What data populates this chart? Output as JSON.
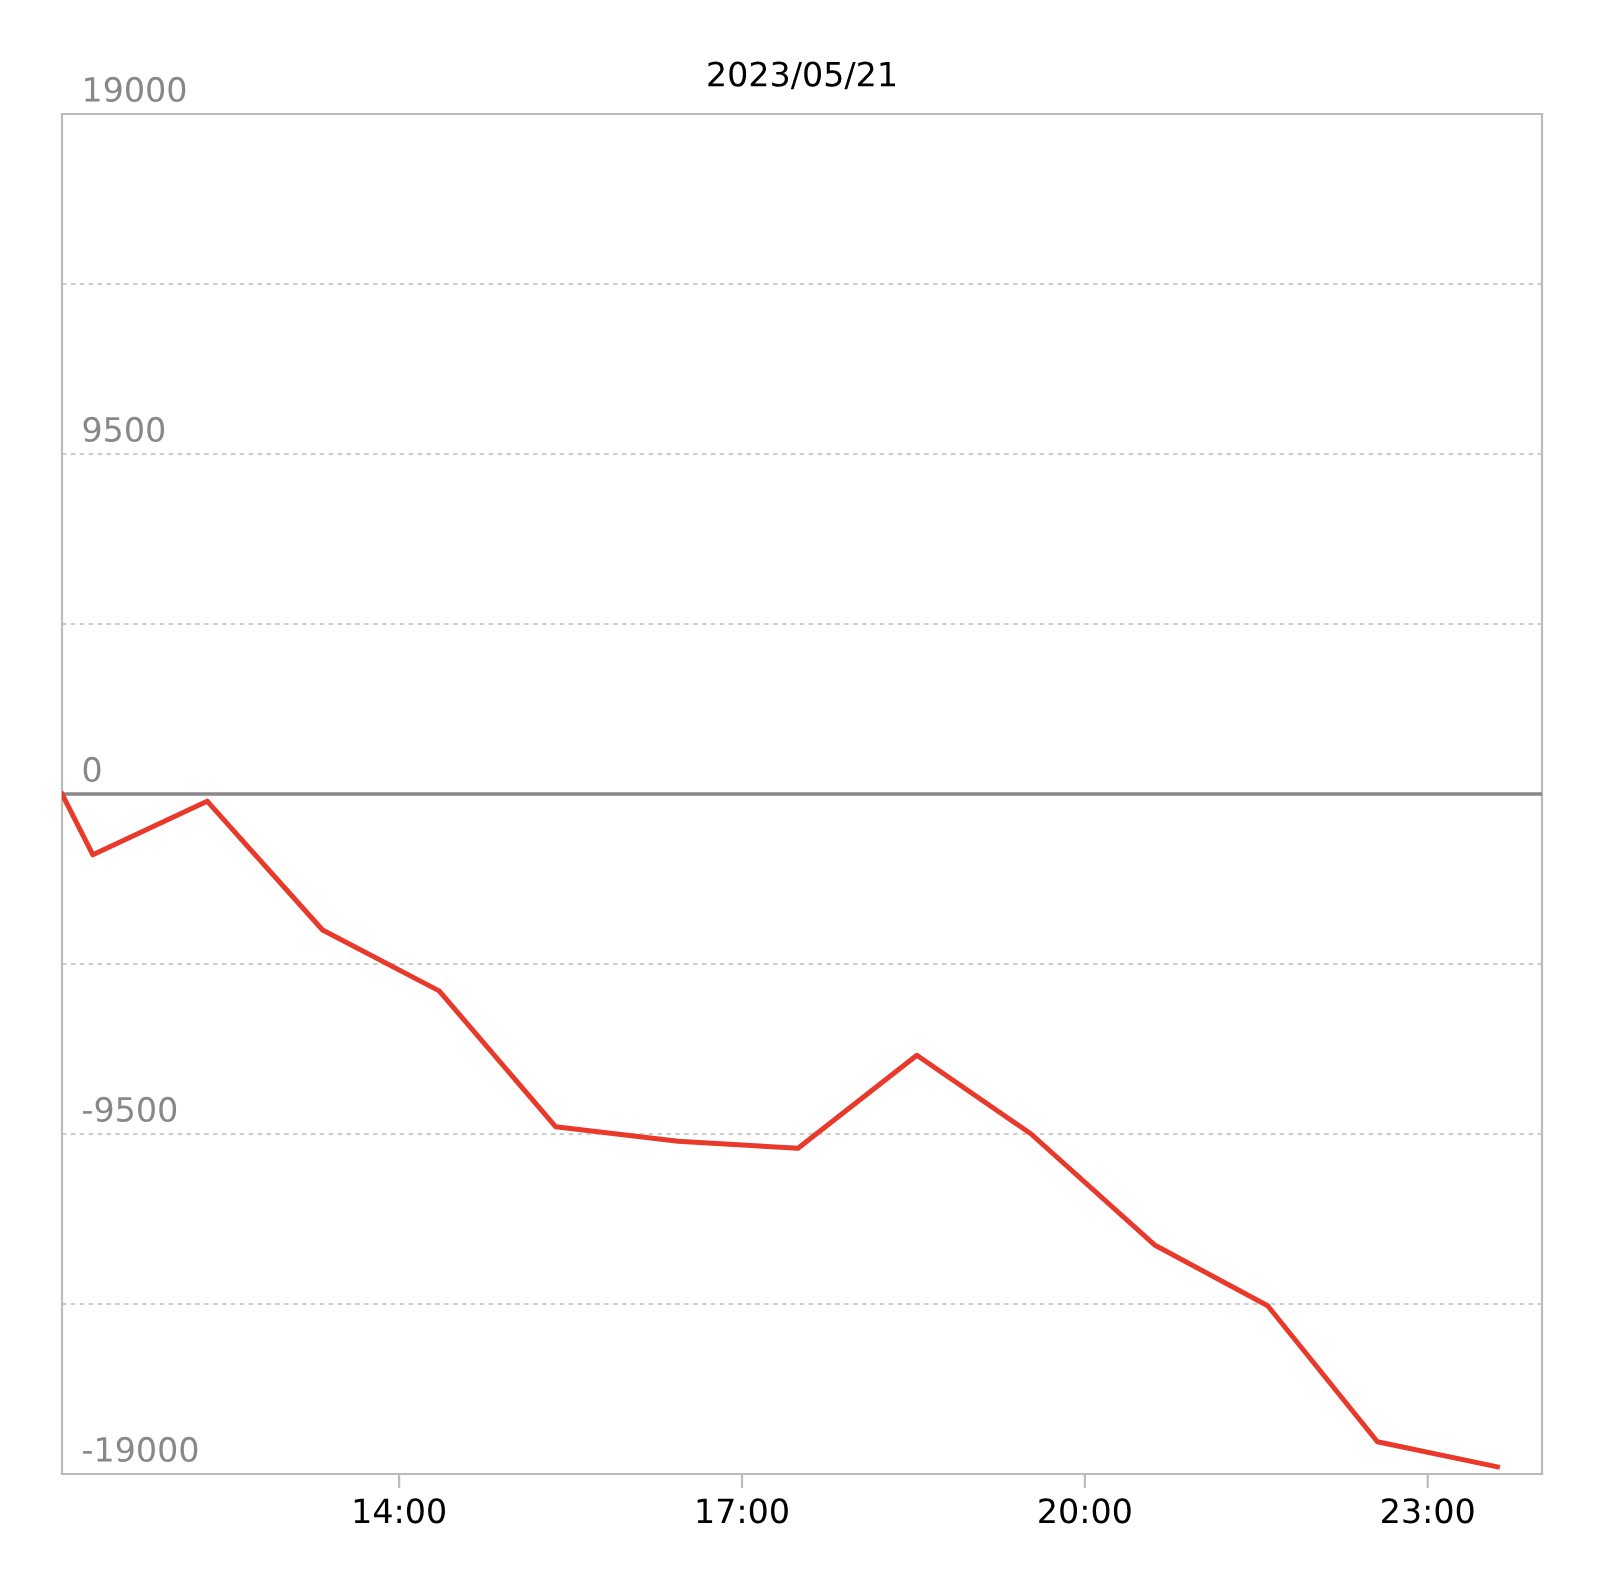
{
  "chart_data": {
    "type": "line",
    "title": "2023/05/21",
    "x": [
      11.05,
      11.32,
      12.32,
      13.33,
      14.35,
      15.37,
      16.44,
      17.49,
      18.53,
      19.53,
      20.61,
      21.6,
      22.56,
      23.61
    ],
    "series": [
      {
        "color": "#e8392b",
        "values": [
          0,
          -1700,
          -200,
          -3800,
          -5500,
          -9300,
          -9700,
          -9900,
          -7300,
          -9500,
          -12600,
          -14300,
          -18100,
          -18800
        ]
      }
    ],
    "xlim": [
      11.05,
      24.0
    ],
    "xticks": [
      {
        "value": 14,
        "label": "14:00"
      },
      {
        "value": 17,
        "label": "17:00"
      },
      {
        "value": 20,
        "label": "20:00"
      },
      {
        "value": 23,
        "label": "23:00"
      }
    ],
    "ylim": [
      -19000,
      19000
    ],
    "yticks": [
      -19000,
      {
        "value": -14250,
        "label": null
      },
      -9500,
      {
        "value": -4750,
        "label": null
      },
      0,
      {
        "value": 4750,
        "label": null
      },
      9500,
      {
        "value": 14250,
        "label": null
      },
      19000
    ],
    "ref_lines": [
      {
        "axis": "y",
        "value": 0,
        "label": null,
        "color": "#888888"
      }
    ],
    "grid": "y",
    "marker": "none",
    "line_style": "solid",
    "legend": false
  }
}
